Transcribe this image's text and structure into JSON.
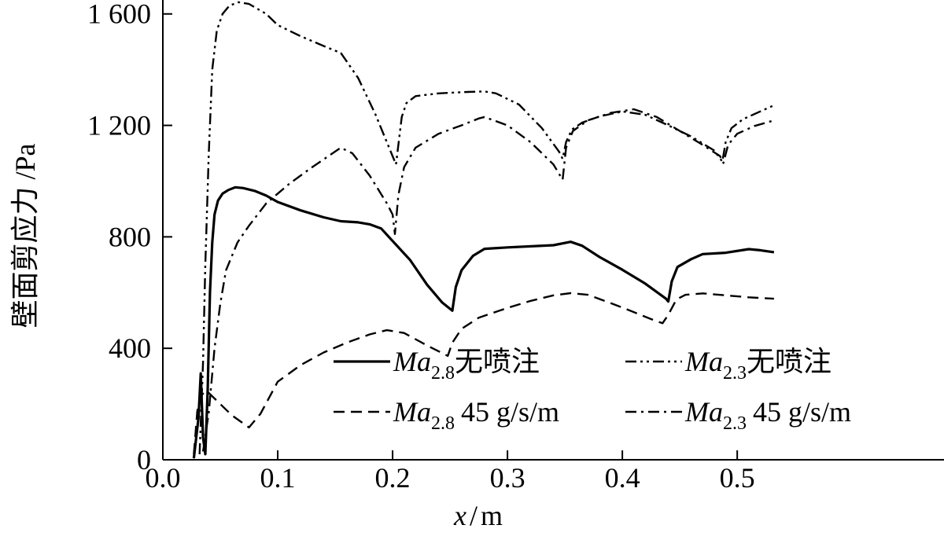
{
  "chart_data": {
    "type": "line",
    "xlabel": {
      "var": "x",
      "unit": "m"
    },
    "ylabel": "壁面剪应力 /Pa",
    "xlim": [
      0,
      0.68
    ],
    "ylim": [
      0,
      1650
    ],
    "x_ticks": [
      {
        "value": 0.0,
        "label": "0.0"
      },
      {
        "value": 0.1,
        "label": "0.1"
      },
      {
        "value": 0.2,
        "label": "0.2"
      },
      {
        "value": 0.3,
        "label": "0.3"
      },
      {
        "value": 0.4,
        "label": "0.4"
      },
      {
        "value": 0.5,
        "label": "0.5"
      }
    ],
    "y_ticks": [
      {
        "value": 0,
        "label": "0"
      },
      {
        "value": 400,
        "label": "400"
      },
      {
        "value": 800,
        "label": "800"
      },
      {
        "value": 1200,
        "label": "1 200"
      },
      {
        "value": 1600,
        "label": "1 600"
      }
    ],
    "grid": false,
    "legend_position": "lower-right",
    "series": [
      {
        "var": "Ma",
        "sub": "2.8",
        "suffix": "无喷注",
        "dash": "solid",
        "points": [
          [
            0.027,
            5
          ],
          [
            0.031,
            150
          ],
          [
            0.033,
            310
          ],
          [
            0.035,
            80
          ],
          [
            0.037,
            20
          ],
          [
            0.039,
            250
          ],
          [
            0.041,
            600
          ],
          [
            0.043,
            780
          ],
          [
            0.045,
            880
          ],
          [
            0.048,
            930
          ],
          [
            0.052,
            955
          ],
          [
            0.057,
            968
          ],
          [
            0.063,
            978
          ],
          [
            0.07,
            975
          ],
          [
            0.08,
            965
          ],
          [
            0.09,
            948
          ],
          [
            0.1,
            925
          ],
          [
            0.12,
            895
          ],
          [
            0.14,
            870
          ],
          [
            0.155,
            856
          ],
          [
            0.17,
            852
          ],
          [
            0.18,
            845
          ],
          [
            0.19,
            830
          ],
          [
            0.2,
            785
          ],
          [
            0.215,
            718
          ],
          [
            0.23,
            628
          ],
          [
            0.243,
            565
          ],
          [
            0.252,
            535
          ],
          [
            0.255,
            620
          ],
          [
            0.26,
            680
          ],
          [
            0.27,
            732
          ],
          [
            0.28,
            757
          ],
          [
            0.3,
            762
          ],
          [
            0.34,
            770
          ],
          [
            0.355,
            782
          ],
          [
            0.365,
            768
          ],
          [
            0.38,
            728
          ],
          [
            0.4,
            682
          ],
          [
            0.42,
            632
          ],
          [
            0.438,
            578
          ],
          [
            0.44,
            568
          ],
          [
            0.443,
            640
          ],
          [
            0.448,
            692
          ],
          [
            0.46,
            720
          ],
          [
            0.47,
            738
          ],
          [
            0.49,
            743
          ],
          [
            0.51,
            756
          ],
          [
            0.52,
            752
          ],
          [
            0.532,
            745
          ]
        ]
      },
      {
        "var": "Ma",
        "sub": "2.8",
        "suffix": "45 g/s/m",
        "dash": "dash",
        "points": [
          [
            0.027,
            20
          ],
          [
            0.03,
            175
          ],
          [
            0.033,
            230
          ],
          [
            0.038,
            248
          ],
          [
            0.05,
            200
          ],
          [
            0.06,
            160
          ],
          [
            0.075,
            116
          ],
          [
            0.085,
            165
          ],
          [
            0.1,
            280
          ],
          [
            0.12,
            340
          ],
          [
            0.14,
            385
          ],
          [
            0.16,
            420
          ],
          [
            0.18,
            450
          ],
          [
            0.195,
            465
          ],
          [
            0.21,
            455
          ],
          [
            0.23,
            410
          ],
          [
            0.248,
            373
          ],
          [
            0.252,
            420
          ],
          [
            0.26,
            470
          ],
          [
            0.275,
            510
          ],
          [
            0.3,
            545
          ],
          [
            0.32,
            570
          ],
          [
            0.34,
            590
          ],
          [
            0.355,
            598
          ],
          [
            0.37,
            592
          ],
          [
            0.39,
            562
          ],
          [
            0.41,
            530
          ],
          [
            0.425,
            505
          ],
          [
            0.435,
            490
          ],
          [
            0.44,
            520
          ],
          [
            0.447,
            575
          ],
          [
            0.455,
            592
          ],
          [
            0.47,
            597
          ],
          [
            0.49,
            590
          ],
          [
            0.51,
            583
          ],
          [
            0.532,
            578
          ]
        ]
      },
      {
        "var": "Ma",
        "sub": "2.3",
        "suffix": "无喷注",
        "dash": "dashdotdot",
        "points": [
          [
            0.032,
            20
          ],
          [
            0.035,
            350
          ],
          [
            0.037,
            700
          ],
          [
            0.04,
            1100
          ],
          [
            0.043,
            1400
          ],
          [
            0.047,
            1540
          ],
          [
            0.052,
            1600
          ],
          [
            0.058,
            1630
          ],
          [
            0.066,
            1642
          ],
          [
            0.075,
            1636
          ],
          [
            0.09,
            1600
          ],
          [
            0.1,
            1560
          ],
          [
            0.12,
            1520
          ],
          [
            0.14,
            1485
          ],
          [
            0.155,
            1460
          ],
          [
            0.17,
            1370
          ],
          [
            0.185,
            1240
          ],
          [
            0.198,
            1110
          ],
          [
            0.203,
            1060
          ],
          [
            0.205,
            1130
          ],
          [
            0.208,
            1230
          ],
          [
            0.212,
            1280
          ],
          [
            0.22,
            1305
          ],
          [
            0.24,
            1315
          ],
          [
            0.265,
            1320
          ],
          [
            0.28,
            1322
          ],
          [
            0.29,
            1315
          ],
          [
            0.31,
            1275
          ],
          [
            0.33,
            1190
          ],
          [
            0.345,
            1105
          ],
          [
            0.348,
            1080
          ],
          [
            0.351,
            1140
          ],
          [
            0.356,
            1185
          ],
          [
            0.365,
            1210
          ],
          [
            0.38,
            1232
          ],
          [
            0.4,
            1250
          ],
          [
            0.42,
            1238
          ],
          [
            0.44,
            1200
          ],
          [
            0.46,
            1160
          ],
          [
            0.48,
            1110
          ],
          [
            0.487,
            1070
          ],
          [
            0.49,
            1140
          ],
          [
            0.495,
            1190
          ],
          [
            0.505,
            1222
          ],
          [
            0.52,
            1250
          ],
          [
            0.532,
            1272
          ]
        ]
      },
      {
        "var": "Ma",
        "sub": "2.3",
        "suffix": "45 g/s/m",
        "dash": "dashdot",
        "points": [
          [
            0.035,
            30
          ],
          [
            0.04,
            170
          ],
          [
            0.045,
            400
          ],
          [
            0.05,
            560
          ],
          [
            0.055,
            680
          ],
          [
            0.065,
            780
          ],
          [
            0.075,
            840
          ],
          [
            0.09,
            920
          ],
          [
            0.11,
            990
          ],
          [
            0.13,
            1050
          ],
          [
            0.155,
            1120
          ],
          [
            0.165,
            1100
          ],
          [
            0.18,
            1020
          ],
          [
            0.195,
            920
          ],
          [
            0.2,
            880
          ],
          [
            0.202,
            810
          ],
          [
            0.205,
            950
          ],
          [
            0.21,
            1050
          ],
          [
            0.22,
            1120
          ],
          [
            0.24,
            1170
          ],
          [
            0.26,
            1200
          ],
          [
            0.275,
            1225
          ],
          [
            0.28,
            1230
          ],
          [
            0.3,
            1200
          ],
          [
            0.32,
            1140
          ],
          [
            0.34,
            1060
          ],
          [
            0.348,
            1005
          ],
          [
            0.351,
            1120
          ],
          [
            0.357,
            1180
          ],
          [
            0.37,
            1218
          ],
          [
            0.39,
            1245
          ],
          [
            0.41,
            1258
          ],
          [
            0.43,
            1230
          ],
          [
            0.45,
            1180
          ],
          [
            0.47,
            1130
          ],
          [
            0.485,
            1090
          ],
          [
            0.488,
            1065
          ],
          [
            0.492,
            1130
          ],
          [
            0.5,
            1170
          ],
          [
            0.515,
            1198
          ],
          [
            0.532,
            1218
          ]
        ]
      }
    ]
  }
}
